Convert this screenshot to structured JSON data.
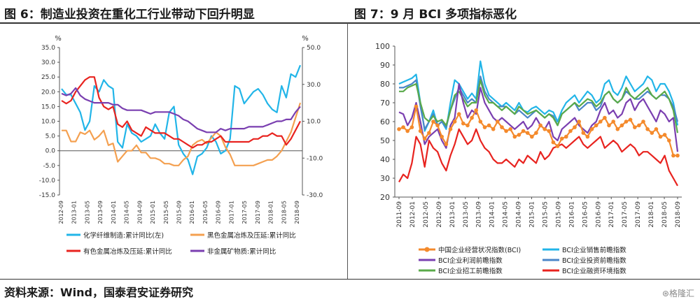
{
  "header": {
    "left_title": "图 6：制造业投资在重化工行业带动下回升明显",
    "right_title": "图 7：9 月 BCI 多项指标恶化"
  },
  "footer": {
    "source": "资料来源：Wind，国泰君安证券研究",
    "watermark": "格隆汇"
  },
  "chart_data": [
    {
      "type": "line",
      "title": "",
      "y_left": {
        "unit": "%",
        "ylim": [
          -15,
          35
        ],
        "ticks": [
          "35.0",
          "30.0",
          "25.0",
          "20.0",
          "15.0",
          "10.0",
          "5.0",
          "0.0",
          "-5.0",
          "-10.0",
          "-15.0"
        ]
      },
      "y_right": {
        "unit": "%",
        "ylim": [
          -30,
          50
        ],
        "ticks": [
          "50.0",
          "30.0",
          "10.0",
          "-10.0",
          "-30.0"
        ]
      },
      "x_ticks": [
        "2012-09",
        "2013-01",
        "2013-05",
        "2013-09",
        "2014-01",
        "2014-05",
        "2014-09",
        "2015-01",
        "2015-05",
        "2015-09",
        "2016-01",
        "2016-05",
        "2016-09",
        "2017-01",
        "2017-05",
        "2017-09",
        "2018-01",
        "2018-05",
        "2018-09"
      ],
      "grid": false,
      "legend_position": "bottom",
      "colors": {
        "chem": "#22b5e8",
        "ferrous": "#f4a050",
        "nonferrous": "#e8231f",
        "mining": "#7a3fb0"
      },
      "series": [
        {
          "name": "化学纤维制造:累计同比(左)",
          "axis": "left",
          "values": [
            21,
            19,
            19,
            16,
            13,
            7,
            10,
            22,
            20,
            24,
            22,
            21,
            3,
            1,
            9,
            6,
            5,
            3,
            4,
            5,
            9,
            6,
            4,
            13,
            15,
            2,
            -1,
            -3,
            -8,
            -2,
            -1,
            1,
            5,
            3,
            -1,
            0,
            4,
            22,
            21,
            16,
            18,
            20,
            21,
            19,
            16,
            14,
            13,
            22,
            18,
            26,
            25,
            29
          ]
        },
        {
          "name": "黑色金属冶炼及压延:累计同比",
          "axis": "right",
          "values": [
            5,
            5,
            -1,
            -1,
            4,
            3,
            5,
            0,
            2,
            5,
            -3,
            -2,
            -12,
            -9,
            -6,
            -6,
            -3,
            -7,
            -7,
            -10,
            -10,
            -11,
            -13,
            -13,
            -14,
            -14,
            -11,
            -9,
            -3,
            -1,
            0,
            -2,
            1,
            4,
            2,
            -4,
            -8,
            -14,
            -14,
            -14,
            -14,
            -14,
            -13,
            -12,
            -11,
            -11,
            -9,
            -6,
            -1,
            4,
            12,
            20
          ]
        },
        {
          "name": "有色金属冶炼及压延:累计同比",
          "axis": "left",
          "values": [
            17,
            16,
            17,
            20,
            22,
            24,
            25,
            25,
            18,
            15,
            14,
            15,
            9,
            8,
            10,
            7,
            6,
            5,
            8,
            7,
            6,
            6,
            6,
            5,
            4,
            4,
            3,
            2,
            1,
            2,
            2,
            3,
            3,
            4,
            5,
            3,
            3,
            3,
            3,
            3,
            3,
            4,
            4,
            5,
            5,
            6,
            5,
            5,
            2,
            4,
            7,
            10
          ]
        },
        {
          "name": "非金属矿物质:累计同比",
          "axis": "right",
          "values": [
            25,
            24,
            25,
            28,
            24,
            22,
            21,
            20,
            20,
            20,
            20,
            19,
            19,
            17,
            16,
            16,
            16,
            16,
            15,
            14,
            15,
            15,
            15,
            15,
            14,
            13,
            11,
            10,
            8,
            6,
            5,
            4,
            4,
            4,
            6,
            5,
            6,
            6,
            6,
            6,
            7,
            7,
            7,
            7,
            8,
            9,
            10,
            10,
            11,
            11,
            15,
            18
          ]
        }
      ]
    },
    {
      "type": "line",
      "title": "",
      "ylim": [
        20,
        100
      ],
      "y_ticks": [
        "100",
        "90",
        "80",
        "70",
        "60",
        "50",
        "40",
        "30",
        "20"
      ],
      "x_ticks": [
        "2011-09",
        "2012-01",
        "2012-05",
        "2012-09",
        "2013-01",
        "2013-05",
        "2013-09",
        "2014-01",
        "2014-05",
        "2014-09",
        "2015-01",
        "2015-05",
        "2015-09",
        "2016-01",
        "2016-05",
        "2016-09",
        "2017-01",
        "2017-05",
        "2017-09",
        "2018-01",
        "2018-05",
        "2018-09"
      ],
      "grid": false,
      "legend_position": "bottom",
      "colors": {
        "bci": "#f48a2c",
        "sales": "#22b5e8",
        "profit": "#7a3fb0",
        "invest": "#4a86c8",
        "hiring": "#5aaa4a",
        "finance": "#e8231f"
      },
      "series": [
        {
          "name": "中国企业经营状况指数(BCI)",
          "marker": "circle",
          "values": [
            56,
            57,
            55,
            57,
            68,
            55,
            51,
            54,
            60,
            58,
            52,
            48,
            56,
            60,
            64,
            59,
            58,
            62,
            66,
            60,
            57,
            58,
            56,
            60,
            57,
            55,
            56,
            52,
            53,
            55,
            54,
            52,
            54,
            58,
            56,
            55,
            49,
            47,
            51,
            52,
            55,
            57,
            60,
            54,
            52,
            56,
            58,
            60,
            62,
            58,
            60,
            56,
            58,
            60,
            61,
            57,
            58,
            60,
            56,
            54,
            56,
            52,
            53,
            50,
            42,
            42
          ]
        },
        {
          "name": "BCI企业销售前瞻指数",
          "values": [
            80,
            81,
            82,
            83,
            85,
            70,
            55,
            60,
            66,
            58,
            60,
            56,
            70,
            82,
            80,
            76,
            72,
            75,
            72,
            92,
            80,
            74,
            72,
            70,
            68,
            70,
            68,
            66,
            70,
            66,
            65,
            67,
            68,
            66,
            64,
            66,
            65,
            60,
            66,
            70,
            72,
            74,
            70,
            73,
            76,
            74,
            70,
            72,
            80,
            82,
            76,
            74,
            78,
            84,
            80,
            76,
            78,
            80,
            84,
            82,
            76,
            80,
            80,
            76,
            70,
            58
          ]
        },
        {
          "name": "BCI企业利润前瞻指数",
          "values": [
            65,
            64,
            58,
            62,
            70,
            60,
            48,
            52,
            54,
            56,
            50,
            46,
            58,
            62,
            80,
            70,
            62,
            66,
            64,
            78,
            70,
            66,
            62,
            60,
            62,
            60,
            58,
            56,
            58,
            60,
            56,
            58,
            62,
            58,
            56,
            60,
            52,
            50,
            56,
            58,
            60,
            62,
            58,
            56,
            54,
            58,
            60,
            66,
            70,
            64,
            66,
            62,
            64,
            70,
            72,
            66,
            70,
            72,
            68,
            64,
            60,
            66,
            64,
            60,
            62,
            44
          ]
        },
        {
          "name": "BCI企业投资前瞻指数",
          "values": [
            78,
            78,
            79,
            80,
            82,
            68,
            56,
            60,
            64,
            58,
            60,
            57,
            66,
            72,
            78,
            74,
            70,
            72,
            70,
            84,
            76,
            72,
            70,
            68,
            68,
            68,
            66,
            64,
            66,
            64,
            62,
            64,
            66,
            64,
            62,
            64,
            63,
            58,
            64,
            66,
            68,
            70,
            66,
            68,
            70,
            70,
            66,
            68,
            74,
            76,
            72,
            70,
            72,
            76,
            74,
            72,
            72,
            74,
            76,
            74,
            72,
            74,
            74,
            72,
            68,
            60
          ]
        },
        {
          "name": "BCI企业招工前瞻指数",
          "values": [
            76,
            76,
            78,
            79,
            80,
            70,
            62,
            60,
            63,
            60,
            61,
            58,
            66,
            74,
            76,
            72,
            68,
            70,
            70,
            82,
            74,
            70,
            70,
            68,
            66,
            68,
            66,
            64,
            68,
            66,
            64,
            65,
            66,
            64,
            62,
            64,
            62,
            58,
            64,
            66,
            68,
            70,
            68,
            70,
            72,
            71,
            68,
            70,
            74,
            76,
            72,
            70,
            72,
            78,
            74,
            72,
            74,
            76,
            78,
            74,
            72,
            74,
            76,
            72,
            66,
            54
          ]
        },
        {
          "name": "BCI企业融资环境指数",
          "values": [
            28,
            32,
            30,
            38,
            52,
            48,
            36,
            50,
            46,
            44,
            38,
            34,
            42,
            48,
            56,
            52,
            48,
            50,
            56,
            50,
            46,
            44,
            40,
            38,
            38,
            40,
            38,
            36,
            40,
            38,
            42,
            40,
            38,
            44,
            40,
            42,
            46,
            47,
            48,
            46,
            48,
            50,
            52,
            48,
            46,
            48,
            50,
            52,
            46,
            48,
            50,
            48,
            44,
            46,
            48,
            46,
            42,
            44,
            44,
            42,
            40,
            38,
            42,
            34,
            30,
            26
          ]
        }
      ]
    }
  ]
}
